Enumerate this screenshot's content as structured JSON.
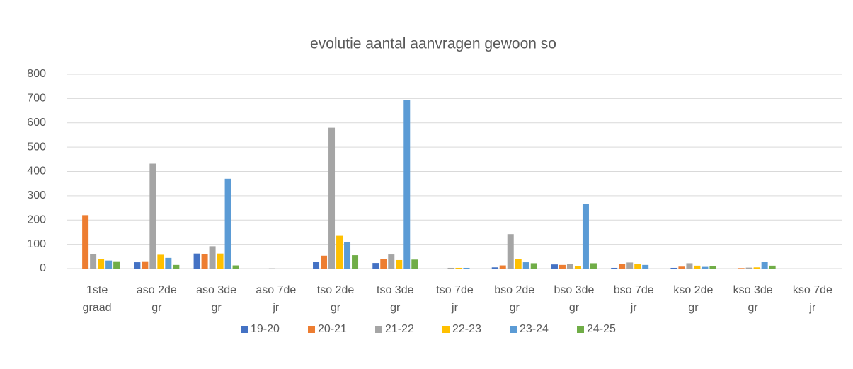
{
  "chart_data": {
    "type": "bar",
    "title": "evolutie aantal aanvragen gewoon so",
    "categories": [
      "1ste graad",
      "aso 2de gr",
      "aso 3de gr",
      "aso 7de jr",
      "tso 2de gr",
      "tso 3de gr",
      "tso 7de jr",
      "bso 2de gr",
      "bso 3de gr",
      "bso 7de jr",
      "kso 2de gr",
      "kso 3de gr",
      "kso 7de jr"
    ],
    "series": [
      {
        "name": "19-20",
        "color": "#4472c4",
        "values": [
          0,
          26,
          62,
          0,
          28,
          23,
          0,
          5,
          17,
          3,
          3,
          0,
          0
        ]
      },
      {
        "name": "20-21",
        "color": "#ed7d31",
        "values": [
          220,
          30,
          60,
          0,
          53,
          40,
          0,
          13,
          15,
          18,
          8,
          2,
          0
        ]
      },
      {
        "name": "21-22",
        "color": "#a5a5a5",
        "values": [
          60,
          432,
          92,
          1,
          580,
          58,
          3,
          142,
          20,
          25,
          22,
          4,
          0
        ]
      },
      {
        "name": "22-23",
        "color": "#ffc000",
        "values": [
          40,
          57,
          62,
          0,
          135,
          35,
          3,
          38,
          10,
          20,
          12,
          5,
          0
        ]
      },
      {
        "name": "23-24",
        "color": "#5b9bd5",
        "values": [
          33,
          44,
          370,
          0,
          108,
          693,
          3,
          26,
          265,
          15,
          7,
          27,
          0
        ]
      },
      {
        "name": "24-25",
        "color": "#70ad47",
        "values": [
          30,
          15,
          13,
          0,
          55,
          37,
          0,
          22,
          22,
          0,
          10,
          12,
          0
        ]
      }
    ],
    "ylim": [
      0,
      800
    ],
    "yticks": [
      0,
      100,
      200,
      300,
      400,
      500,
      600,
      700,
      800
    ],
    "grid": true,
    "legend": "bottom"
  }
}
